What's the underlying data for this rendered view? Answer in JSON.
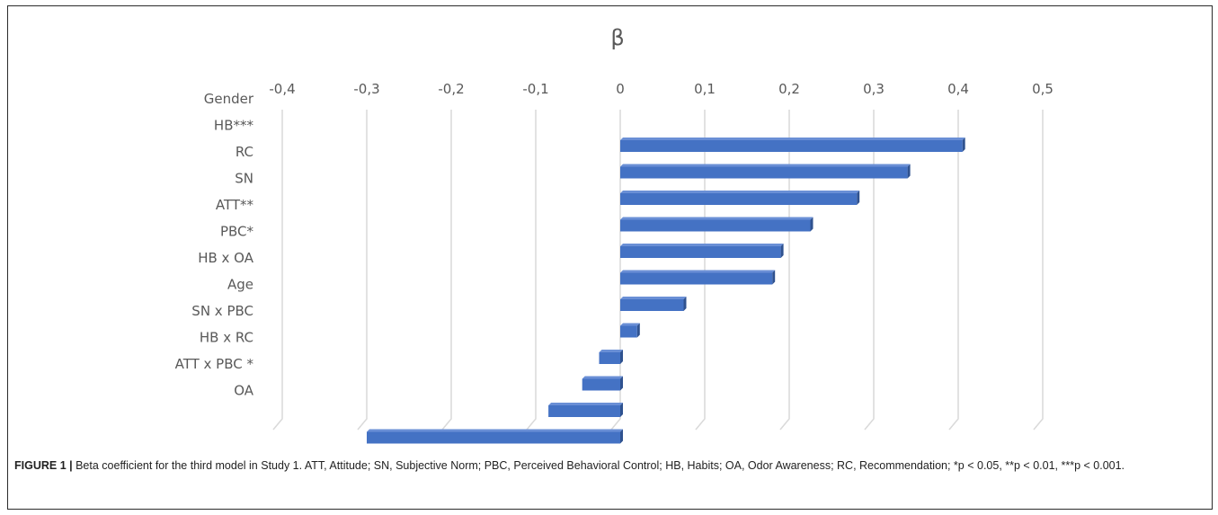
{
  "chart_data": {
    "type": "bar",
    "orientation": "horizontal",
    "title": "β",
    "xlim": [
      -0.4,
      0.5
    ],
    "x_ticks": [
      "-0,4",
      "-0,3",
      "-0,2",
      "-0,1",
      "0",
      "0,1",
      "0,2",
      "0,3",
      "0,4",
      "0,5"
    ],
    "x_tick_values": [
      -0.4,
      -0.3,
      -0.2,
      -0.1,
      0,
      0.1,
      0.2,
      0.3,
      0.4,
      0.5
    ],
    "categories": [
      "Gender",
      "HB***",
      "RC",
      "SN",
      "ATT**",
      "PBC*",
      "HB x OA",
      "Age",
      "SN x PBC",
      "HB x RC",
      "ATT x PBC *",
      "OA",
      ""
    ],
    "values": [
      null,
      0.405,
      0.34,
      0.28,
      0.225,
      0.19,
      0.18,
      0.075,
      0.02,
      -0.025,
      -0.045,
      -0.085,
      -0.3
    ],
    "bar_color": "#4472C4",
    "grid": true,
    "legend": "none"
  },
  "caption": {
    "label": "FIGURE 1 |",
    "text": " Beta coefficient for the third model in Study 1. ATT, Attitude; SN, Subjective Norm; PBC, Perceived Behavioral Control; HB, Habits; OA, Odor Awareness; RC, Recommendation; *p < 0.05, **p < 0.01, ***p < 0.001."
  }
}
